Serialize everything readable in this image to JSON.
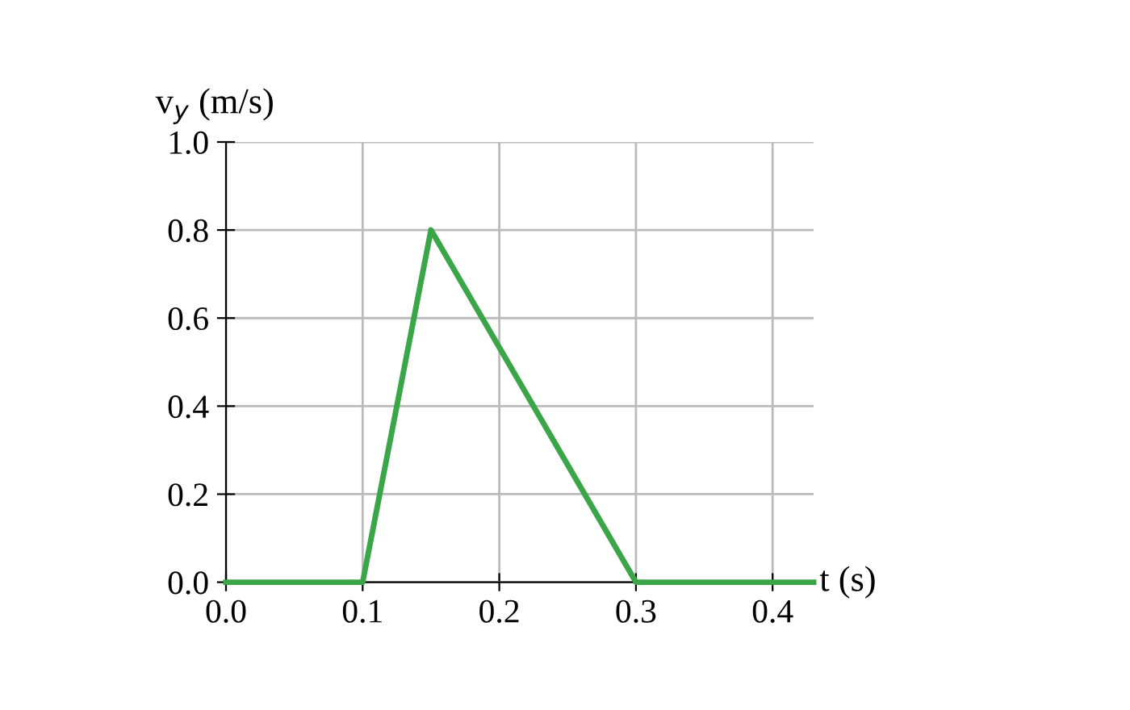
{
  "chart_data": {
    "type": "line",
    "xlabel": "t (s)",
    "ylabel": "v$_{y}$ (m/s)",
    "x": [
      0.0,
      0.1,
      0.15,
      0.3,
      0.43
    ],
    "series": [
      {
        "color": "#3aa648",
        "values": [
          0.0,
          0.0,
          0.8,
          0.0,
          0.0
        ]
      }
    ],
    "xlim": [
      0,
      0.43
    ],
    "ylim": [
      0,
      1.0
    ],
    "xticks": [
      {
        "value": 0,
        "label": "0.0"
      },
      {
        "value": 0.1,
        "label": "0.1"
      },
      {
        "value": 0.2,
        "label": "0.2"
      },
      {
        "value": 0.3,
        "label": "0.3"
      },
      {
        "value": 0.4,
        "label": "0.4"
      }
    ],
    "yticks": [
      {
        "value": 0,
        "label": "0.0"
      },
      {
        "value": 0.2,
        "label": "0.2"
      },
      {
        "value": 0.4,
        "label": "0.4"
      },
      {
        "value": 0.6,
        "label": "0.6"
      },
      {
        "value": 0.8,
        "label": "0.8"
      },
      {
        "value": 1.0,
        "label": "1.0"
      }
    ],
    "grid": true,
    "line_style": "solid",
    "marker": "none"
  }
}
